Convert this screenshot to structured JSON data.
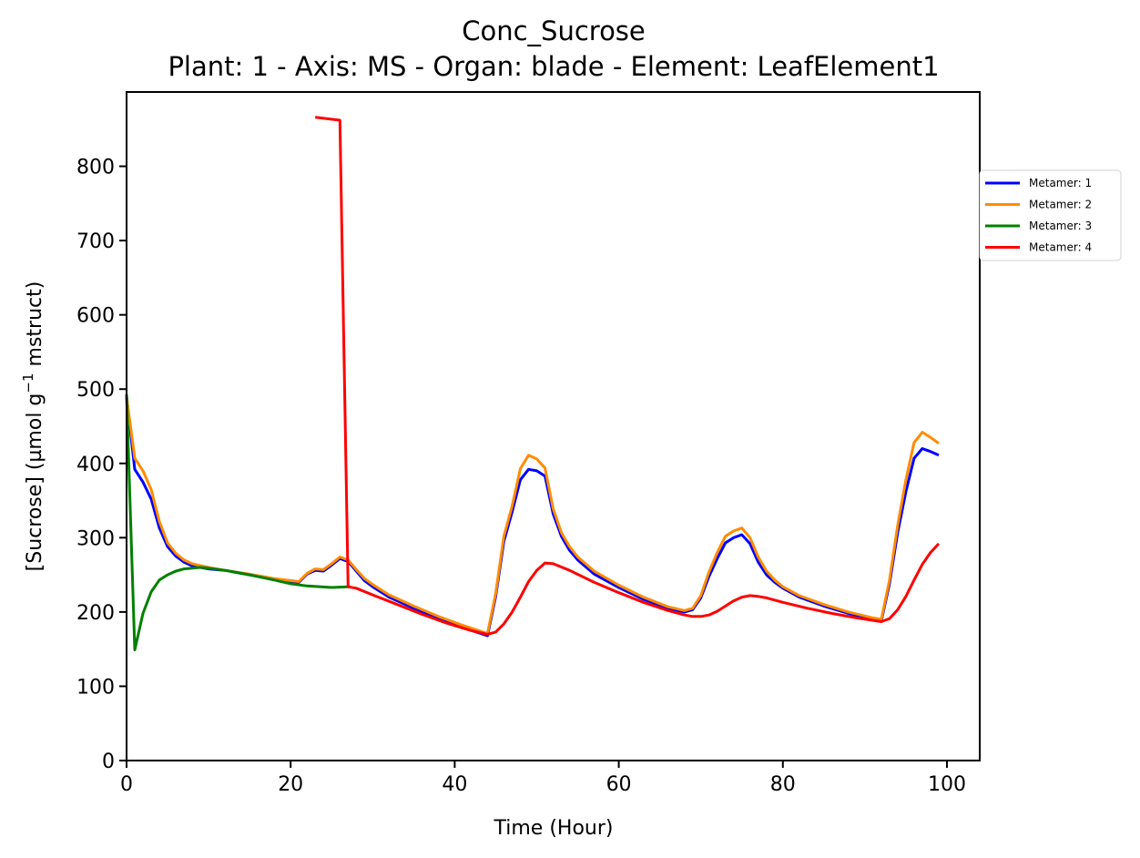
{
  "chart_data": {
    "type": "line",
    "title": "Conc_Sucrose",
    "subtitle": "Plant: 1 - Axis: MS - Organ: blade - Element: LeafElement1",
    "xlabel": "Time (Hour)",
    "ylabel_main": "[Sucrose] (µmol g",
    "ylabel_sup": "−1",
    "ylabel_tail": " mstruct)",
    "xlim": [
      0,
      104
    ],
    "ylim": [
      0,
      900
    ],
    "xticks": [
      0,
      20,
      40,
      60,
      80,
      100
    ],
    "yticks": [
      0,
      100,
      200,
      300,
      400,
      500,
      600,
      700,
      800
    ],
    "grid": false,
    "legend_position": "outside-right-top",
    "series": [
      {
        "name": "Metamer: 1",
        "color": "#0000ff",
        "x": [
          0,
          1,
          2,
          3,
          4,
          5,
          6,
          7,
          8,
          10,
          12,
          15,
          18,
          21,
          22,
          23,
          24,
          25,
          26,
          27,
          28,
          29,
          30,
          32,
          35,
          38,
          41,
          44,
          45,
          46,
          47,
          48,
          49,
          50,
          51,
          52,
          53,
          54,
          55,
          57,
          60,
          63,
          66,
          68,
          69,
          70,
          71,
          72,
          73,
          74,
          75,
          76,
          77,
          78,
          79,
          80,
          82,
          85,
          88,
          91,
          92,
          93,
          94,
          95,
          96,
          97,
          98,
          99
        ],
        "y": [
          490,
          392,
          375,
          352,
          313,
          288,
          275,
          267,
          262,
          258,
          256,
          250,
          244,
          240,
          251,
          256,
          255,
          263,
          272,
          268,
          255,
          242,
          234,
          220,
          205,
          191,
          179,
          168,
          221,
          295,
          335,
          378,
          392,
          390,
          383,
          332,
          302,
          283,
          270,
          251,
          233,
          217,
          205,
          200,
          203,
          219,
          248,
          272,
          293,
          300,
          304,
          292,
          267,
          250,
          240,
          232,
          220,
          208,
          198,
          190,
          188,
          238,
          307,
          362,
          407,
          420,
          416,
          411
        ]
      },
      {
        "name": "Metamer: 2",
        "color": "#ff8c00",
        "x": [
          0,
          1,
          2,
          3,
          4,
          5,
          6,
          7,
          8,
          10,
          12,
          15,
          18,
          21,
          22,
          23,
          24,
          25,
          26,
          27,
          28,
          29,
          30,
          32,
          35,
          38,
          41,
          44,
          45,
          46,
          47,
          48,
          49,
          50,
          51,
          52,
          53,
          54,
          55,
          57,
          60,
          63,
          66,
          68,
          69,
          70,
          71,
          72,
          73,
          74,
          75,
          76,
          77,
          78,
          79,
          80,
          82,
          85,
          88,
          91,
          92,
          93,
          94,
          95,
          96,
          97,
          98,
          99
        ],
        "y": [
          490,
          407,
          390,
          365,
          322,
          293,
          279,
          270,
          265,
          260,
          256,
          251,
          245,
          241,
          252,
          258,
          257,
          265,
          274,
          270,
          257,
          245,
          237,
          223,
          208,
          194,
          182,
          171,
          225,
          302,
          343,
          393,
          411,
          406,
          394,
          339,
          307,
          288,
          274,
          255,
          236,
          220,
          207,
          202,
          205,
          222,
          254,
          280,
          302,
          309,
          313,
          300,
          274,
          255,
          243,
          234,
          222,
          210,
          200,
          192,
          190,
          243,
          317,
          378,
          428,
          442,
          435,
          427
        ]
      },
      {
        "name": "Metamer: 3",
        "color": "#008000",
        "x": [
          0,
          1,
          2,
          3,
          4,
          5,
          6,
          7,
          8,
          9,
          10,
          12,
          15,
          18,
          20,
          22,
          25,
          27
        ],
        "y": [
          493,
          149,
          198,
          227,
          243,
          250,
          255,
          258,
          259,
          260,
          259,
          256,
          250,
          243,
          238,
          235,
          233,
          234
        ]
      },
      {
        "name": "Metamer: 4",
        "color": "#ff0000",
        "x": [
          23,
          26,
          27,
          28,
          30,
          33,
          36,
          39,
          42,
          44,
          45,
          46,
          47,
          48,
          49,
          50,
          51,
          52,
          54,
          57,
          60,
          63,
          66,
          68,
          69,
          70,
          71,
          72,
          73,
          74,
          75,
          76,
          77,
          78,
          80,
          83,
          86,
          89,
          92,
          93,
          94,
          95,
          96,
          97,
          98,
          99
        ],
        "y": [
          866,
          862,
          234,
          232,
          223,
          210,
          197,
          185,
          175,
          170,
          173,
          184,
          200,
          220,
          241,
          256,
          266,
          265,
          256,
          240,
          226,
          213,
          202,
          196,
          194,
          194,
          196,
          201,
          208,
          215,
          220,
          222,
          221,
          219,
          213,
          205,
          198,
          192,
          187,
          191,
          203,
          221,
          243,
          264,
          280,
          292
        ]
      }
    ]
  }
}
